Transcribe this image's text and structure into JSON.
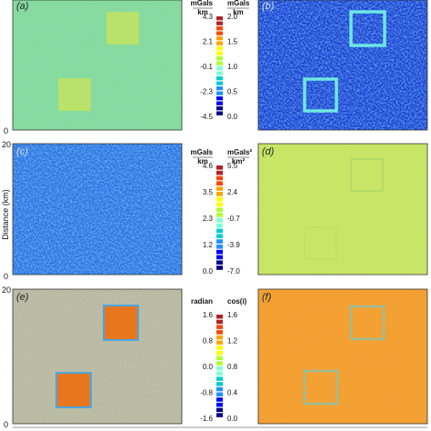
{
  "figure": {
    "ylabel": "Distance (km)",
    "ytick_top": "20",
    "ytick_bottom": "0",
    "panels": [
      {
        "label": "(a)",
        "colormap": "green"
      },
      {
        "label": "(b)",
        "colormap": "blue"
      },
      {
        "label": "(c)",
        "colormap": "blue"
      },
      {
        "label": "(d)",
        "colormap": "yellow"
      },
      {
        "label": "(e)",
        "colormap": "mixed"
      },
      {
        "label": "(f)",
        "colormap": "orange"
      }
    ]
  },
  "colorbars": [
    {
      "left_unit_num": "mGals",
      "left_unit_den": "km",
      "right_unit_num": "mGals",
      "right_unit_den": "km",
      "left_ticks": [
        "4.3",
        "2.1",
        "-0.1",
        "-2.3",
        "-4.5"
      ],
      "right_ticks": [
        "2.0",
        "1.5",
        "1.0",
        "0.5",
        "0.0"
      ]
    },
    {
      "left_unit_num": "mGals",
      "left_unit_den": "km",
      "right_unit_num": "mGals²",
      "right_unit_den": "km²",
      "left_ticks": [
        "4.6",
        "3.5",
        "2.3",
        "1.2",
        "0.0"
      ],
      "right_ticks": [
        "5.5",
        "2.4",
        "-0.7",
        "-3.9",
        "-7.0"
      ]
    },
    {
      "left_unit_num": "radian",
      "left_unit_den": "",
      "right_unit_num": "cos(i)",
      "right_unit_den": "",
      "left_ticks": [
        "1.6",
        "0.8",
        "0.0",
        "-0.8",
        "-1.6"
      ],
      "right_ticks": [
        "1.6",
        "1.2",
        "0.8",
        "0.4",
        "0.0"
      ]
    }
  ],
  "colors": {
    "scale": [
      "#00008b",
      "#0000ff",
      "#1e90ff",
      "#00ced1",
      "#7fffd4",
      "#adff2f",
      "#ffff00",
      "#ffa500",
      "#ff4500",
      "#b22222"
    ]
  }
}
